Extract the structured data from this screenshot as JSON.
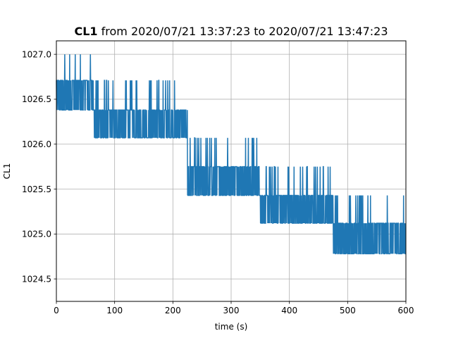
{
  "chart_data": {
    "type": "line",
    "title_bold": "CL1",
    "title_rest": " from 2020/07/21 13:37:23 to 2020/07/21 13:47:23",
    "xlabel": "time (s)",
    "ylabel": "CL1",
    "xlim": [
      0,
      600
    ],
    "ylim": [
      1024.25,
      1027.15
    ],
    "x_ticks": [
      0,
      100,
      200,
      300,
      400,
      500,
      600
    ],
    "x_tick_labels": [
      "0",
      "100",
      "200",
      "300",
      "400",
      "500",
      "600"
    ],
    "y_ticks": [
      1024.5,
      1025.0,
      1025.5,
      1026.0,
      1026.5,
      1027.0
    ],
    "y_tick_labels": [
      "1024.5",
      "1025.0",
      "1025.5",
      "1026.0",
      "1026.5",
      "1027.0"
    ],
    "grid": true,
    "color": "#1f77b4",
    "series": [
      {
        "x": [
          0,
          25,
          50,
          75,
          100,
          125,
          150,
          175,
          200,
          225,
          250,
          275,
          300,
          325,
          350,
          375,
          400,
          425,
          450,
          475,
          500,
          525,
          550,
          575,
          600
        ],
        "y": [
          1026.6,
          1026.55,
          1026.5,
          1026.4,
          1026.4,
          1026.35,
          1026.3,
          1026.2,
          1026.1,
          1025.95,
          1025.8,
          1025.75,
          1025.7,
          1025.7,
          1025.5,
          1025.4,
          1025.4,
          1025.35,
          1025.3,
          1025.2,
          1025.0,
          1024.95,
          1024.95,
          1024.9,
          1024.9
        ]
      }
    ],
    "levels": [
      {
        "start": 0,
        "end": 65,
        "values": [
          1026.38,
          1026.71,
          1027.0
        ]
      },
      {
        "start": 65,
        "end": 225,
        "values": [
          1026.07,
          1026.38,
          1026.71
        ]
      },
      {
        "start": 225,
        "end": 350,
        "values": [
          1025.43,
          1025.75,
          1026.07
        ]
      },
      {
        "start": 350,
        "end": 475,
        "values": [
          1025.12,
          1025.43,
          1025.75
        ]
      },
      {
        "start": 475,
        "end": 600,
        "values": [
          1024.78,
          1025.12,
          1025.43
        ]
      }
    ]
  }
}
